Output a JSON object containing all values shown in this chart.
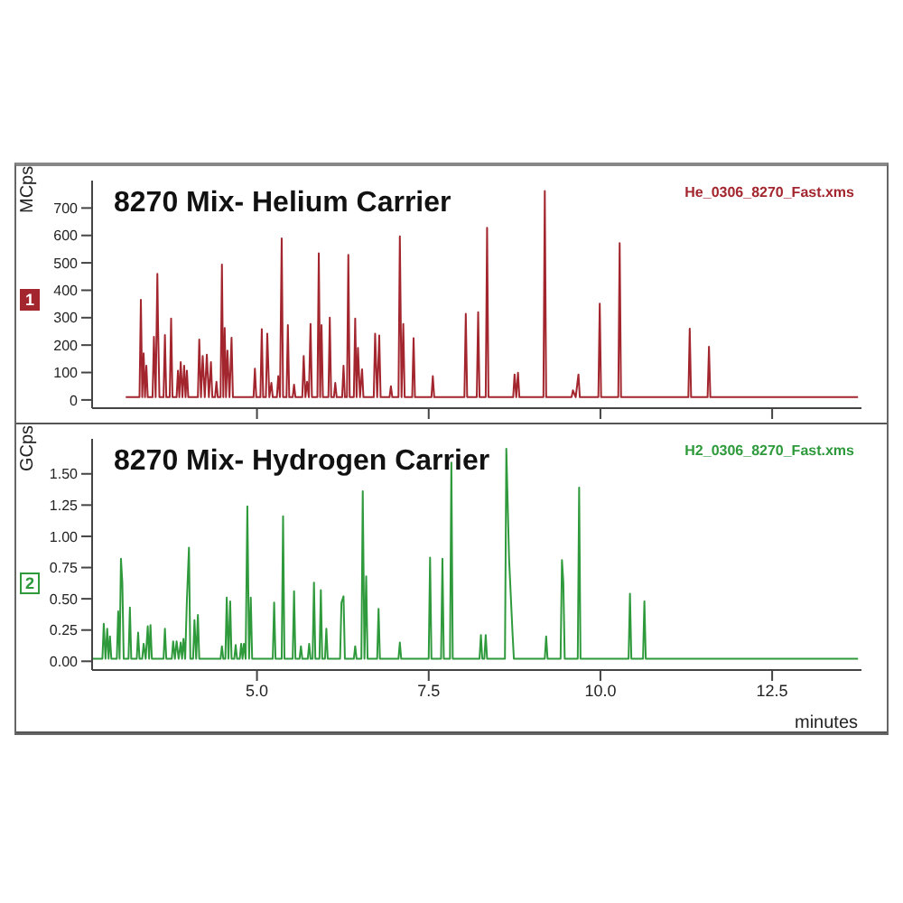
{
  "chart_data": [
    {
      "type": "line",
      "title": "8270 Mix- Helium Carrier",
      "ylabel": "MCps",
      "annotations": [
        "He_0306_8270_Fast.xms",
        "1"
      ],
      "xlim": [
        2.6,
        13.8
      ],
      "xticks": [
        5,
        7.5,
        10,
        12.5
      ],
      "ylim": [
        -30,
        800
      ],
      "yticks": [
        0,
        100,
        200,
        300,
        400,
        500,
        600,
        700
      ],
      "tick_labels": "y",
      "grid": false,
      "legend": false,
      "marker": "none",
      "line_style": "solid",
      "series": [
        {
          "color": "#a3262e",
          "x": [
            3.09,
            3.29,
            3.31,
            3.33,
            3.35,
            3.37,
            3.39,
            3.41,
            3.48,
            3.5,
            3.525,
            3.55,
            3.56,
            3.58,
            3.64,
            3.66,
            3.68,
            3.73,
            3.75,
            3.77,
            3.83,
            3.85,
            3.87,
            3.89,
            3.915,
            3.94,
            3.96,
            3.98,
            4.0,
            4.14,
            4.16,
            4.185,
            4.21,
            4.24,
            4.27,
            4.3,
            4.33,
            4.35,
            4.39,
            4.41,
            4.43,
            4.47,
            4.49,
            4.51,
            4.53,
            4.55,
            4.57,
            4.6,
            4.63,
            4.65,
            4.95,
            4.97,
            4.99,
            5.05,
            5.07,
            5.09,
            5.13,
            5.15,
            5.18,
            5.21,
            5.23,
            5.29,
            5.31,
            5.335,
            5.36,
            5.38,
            5.43,
            5.45,
            5.47,
            5.52,
            5.54,
            5.56,
            5.66,
            5.68,
            5.705,
            5.73,
            5.755,
            5.78,
            5.8,
            5.88,
            5.9,
            5.92,
            5.94,
            5.96,
            6.04,
            6.06,
            6.08,
            6.12,
            6.14,
            6.16,
            6.24,
            6.26,
            6.28,
            6.31,
            6.33,
            6.35,
            6.41,
            6.43,
            6.45,
            6.47,
            6.5,
            6.53,
            6.55,
            6.7,
            6.72,
            6.75,
            6.78,
            6.8,
            6.93,
            6.95,
            6.97,
            7.06,
            7.08,
            7.105,
            7.13,
            7.15,
            7.26,
            7.28,
            7.3,
            7.54,
            7.56,
            7.58,
            8.02,
            8.04,
            8.06,
            8.2,
            8.22,
            8.24,
            8.33,
            8.35,
            8.37,
            8.73,
            8.75,
            8.775,
            8.8,
            8.82,
            9.17,
            9.19,
            9.21,
            9.58,
            9.6,
            9.64,
            9.68,
            9.7,
            9.97,
            9.99,
            10.01,
            10.26,
            10.28,
            10.3,
            11.28,
            11.3,
            11.32,
            11.56,
            11.58,
            11.6,
            13.75
          ],
          "values": [
            10,
            10,
            365,
            10,
            170,
            10,
            125,
            10,
            10,
            230,
            10,
            460,
            275,
            10,
            10,
            237,
            10,
            10,
            297,
            10,
            10,
            107,
            10,
            138,
            10,
            125,
            10,
            107,
            10,
            10,
            220,
            10,
            160,
            10,
            165,
            10,
            138,
            10,
            10,
            66,
            10,
            10,
            494,
            10,
            262,
            10,
            180,
            10,
            227,
            10,
            10,
            114,
            10,
            10,
            258,
            10,
            10,
            242,
            10,
            62,
            10,
            10,
            87,
            10,
            589,
            10,
            10,
            273,
            10,
            10,
            56,
            10,
            10,
            160,
            10,
            66,
            10,
            277,
            10,
            10,
            535,
            10,
            273,
            10,
            10,
            300,
            10,
            10,
            62,
            10,
            10,
            125,
            10,
            10,
            529,
            10,
            10,
            297,
            10,
            190,
            10,
            112,
            10,
            10,
            242,
            10,
            235,
            10,
            10,
            50,
            10,
            10,
            597,
            10,
            277,
            10,
            10,
            225,
            10,
            10,
            87,
            10,
            10,
            314,
            10,
            10,
            320,
            10,
            10,
            628,
            10,
            10,
            93,
            10,
            99,
            10,
            10,
            762,
            10,
            10,
            35,
            10,
            93,
            10,
            10,
            351,
            10,
            10,
            572,
            10,
            10,
            260,
            10,
            10,
            194,
            10,
            10
          ]
        }
      ]
    },
    {
      "type": "line",
      "title": "8270 Mix- Hydrogen Carrier",
      "xlabel": "minutes",
      "ylabel": "GCps",
      "annotations": [
        "H2_0306_8270_Fast.xms",
        "2"
      ],
      "xlim": [
        2.6,
        13.8
      ],
      "xticks": [
        {
          "value": 5,
          "label": "5.0"
        },
        {
          "value": 7.5,
          "label": "7.5"
        },
        {
          "value": 10,
          "label": "10.0"
        },
        12.5
      ],
      "ylim": [
        -0.07,
        1.78
      ],
      "yticks": [
        {
          "value": 0,
          "label": "0.00"
        },
        0.25,
        {
          "value": 0.5,
          "label": "0.50"
        },
        0.75,
        {
          "value": 1,
          "label": "1.00"
        },
        1.25,
        {
          "value": 1.5,
          "label": "1.50"
        }
      ],
      "grid": false,
      "legend": false,
      "marker": "none",
      "line_style": "solid",
      "series": [
        {
          "color": "#2e9a3c",
          "x": [
            2.61,
            2.75,
            2.77,
            2.795,
            2.82,
            2.84,
            2.86,
            2.88,
            2.96,
            2.98,
            3.0,
            3.02,
            3.04,
            3.06,
            3.13,
            3.15,
            3.17,
            3.25,
            3.27,
            3.29,
            3.33,
            3.35,
            3.38,
            3.41,
            3.43,
            3.45,
            3.47,
            3.64,
            3.66,
            3.68,
            3.76,
            3.78,
            3.805,
            3.83,
            3.86,
            3.89,
            3.91,
            3.93,
            3.955,
            3.98,
            4.01,
            4.03,
            4.07,
            4.09,
            4.115,
            4.14,
            4.16,
            4.47,
            4.49,
            4.51,
            4.54,
            4.56,
            4.585,
            4.61,
            4.63,
            4.67,
            4.69,
            4.71,
            4.75,
            4.77,
            4.79,
            4.81,
            4.835,
            4.86,
            4.885,
            4.91,
            4.93,
            5.23,
            5.25,
            5.27,
            5.36,
            5.38,
            5.4,
            5.52,
            5.54,
            5.56,
            5.62,
            5.64,
            5.66,
            5.74,
            5.76,
            5.78,
            5.81,
            5.83,
            5.85,
            5.91,
            5.93,
            5.95,
            5.99,
            6.01,
            6.03,
            6.21,
            6.23,
            6.26,
            6.28,
            6.41,
            6.43,
            6.45,
            6.52,
            6.54,
            6.565,
            6.59,
            6.61,
            6.75,
            6.77,
            6.79,
            7.06,
            7.08,
            7.1,
            7.5,
            7.52,
            7.54,
            7.68,
            7.7,
            7.72,
            7.81,
            7.83,
            7.85,
            8.24,
            8.26,
            8.28,
            8.31,
            8.33,
            8.35,
            8.61,
            8.63,
            8.67,
            8.72,
            8.74,
            9.19,
            9.21,
            9.23,
            9.42,
            9.44,
            9.46,
            9.48,
            9.67,
            9.69,
            9.71,
            10.41,
            10.43,
            10.45,
            10.62,
            10.64,
            10.66,
            13.75
          ],
          "values": [
            0.02,
            0.02,
            0.3,
            0.02,
            0.26,
            0.02,
            0.2,
            0.02,
            0.02,
            0.4,
            0.02,
            0.82,
            0.63,
            0.02,
            0.02,
            0.43,
            0.02,
            0.02,
            0.23,
            0.02,
            0.02,
            0.14,
            0.02,
            0.28,
            0.02,
            0.29,
            0.02,
            0.02,
            0.26,
            0.02,
            0.02,
            0.16,
            0.02,
            0.16,
            0.02,
            0.15,
            0.02,
            0.18,
            0.02,
            0.49,
            0.91,
            0.02,
            0.02,
            0.33,
            0.02,
            0.37,
            0.02,
            0.02,
            0.12,
            0.02,
            0.02,
            0.51,
            0.02,
            0.48,
            0.02,
            0.02,
            0.13,
            0.02,
            0.02,
            0.14,
            0.02,
            0.14,
            0.02,
            1.24,
            0.02,
            0.51,
            0.02,
            0.02,
            0.47,
            0.02,
            0.02,
            1.16,
            0.02,
            0.02,
            0.56,
            0.02,
            0.02,
            0.12,
            0.02,
            0.02,
            0.14,
            0.02,
            0.02,
            0.63,
            0.02,
            0.02,
            0.57,
            0.02,
            0.02,
            0.26,
            0.02,
            0.02,
            0.47,
            0.52,
            0.02,
            0.02,
            0.12,
            0.02,
            0.02,
            1.36,
            0.02,
            0.68,
            0.02,
            0.02,
            0.42,
            0.02,
            0.02,
            0.15,
            0.02,
            0.02,
            0.83,
            0.02,
            0.02,
            0.82,
            0.02,
            0.02,
            1.59,
            0.02,
            0.02,
            0.21,
            0.02,
            0.02,
            0.21,
            0.02,
            0.02,
            1.7,
            0.82,
            0.23,
            0.02,
            0.02,
            0.2,
            0.02,
            0.02,
            0.81,
            0.63,
            0.02,
            0.02,
            1.39,
            0.02,
            0.02,
            0.54,
            0.02,
            0.02,
            0.48,
            0.02,
            0.02
          ]
        }
      ]
    }
  ]
}
